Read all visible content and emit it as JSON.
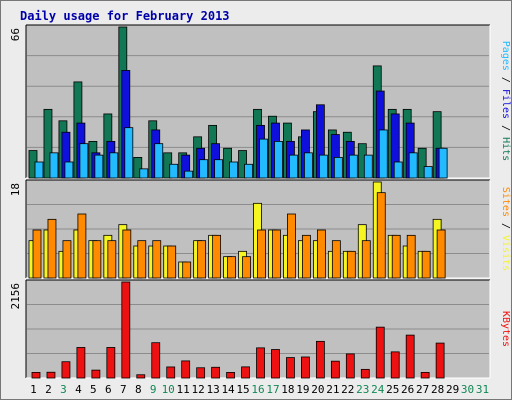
{
  "title": "Daily usage for February 2013",
  "colors": {
    "hits": "#127755",
    "files": "#1010dd",
    "pages": "#22bbff",
    "visits": "#f5f522",
    "sites": "#ff8a00",
    "kbytes": "#ee1111",
    "weekend_day": "#128855",
    "weekday": "#000000",
    "panel_bg": "#c0c0c0"
  },
  "right_labels": {
    "top": [
      {
        "text": "Pages",
        "color": "#22bbff"
      },
      {
        "text": " / ",
        "color": "#000000"
      },
      {
        "text": "Files",
        "color": "#1010dd"
      },
      {
        "text": " / ",
        "color": "#000000"
      },
      {
        "text": "Hits",
        "color": "#127755"
      }
    ],
    "middle": [
      {
        "text": "Sites",
        "color": "#ff8a00"
      },
      {
        "text": " / ",
        "color": "#000000"
      },
      {
        "text": "Visits",
        "color": "#f5f522"
      }
    ],
    "bottom": [
      {
        "text": "KBytes",
        "color": "#ee1111"
      }
    ]
  },
  "chart_data": {
    "type": "bar",
    "title": "Daily usage for February 2013",
    "days": [
      "1",
      "2",
      "3",
      "4",
      "5",
      "6",
      "7",
      "8",
      "9",
      "10",
      "11",
      "12",
      "13",
      "14",
      "15",
      "16",
      "17",
      "18",
      "19",
      "20",
      "21",
      "22",
      "23",
      "24",
      "25",
      "26",
      "27",
      "28",
      "29",
      "30",
      "31"
    ],
    "weekend_days": [
      "3",
      "9",
      "10",
      "16",
      "17",
      "23",
      "24",
      "30",
      "31"
    ],
    "panels": [
      {
        "name": "hits-files-pages",
        "ymax_label": "66",
        "ylim": [
          0,
          66
        ],
        "series": [
          {
            "name": "Hits",
            "color_key": "hits",
            "values": [
              12,
              30,
              25,
              42,
              16,
              28,
              66,
              9,
              25,
              11,
              11,
              18,
              23,
              13,
              12,
              30,
              27,
              24,
              18,
              29,
              21,
              20,
              15,
              49,
              30,
              30,
              13,
              29,
              null,
              null,
              null
            ]
          },
          {
            "name": "Files",
            "color_key": "files",
            "values": [
              null,
              null,
              20,
              24,
              11,
              16,
              47,
              null,
              21,
              null,
              10,
              13,
              15,
              null,
              null,
              23,
              24,
              16,
              21,
              32,
              19,
              16,
              null,
              38,
              28,
              24,
              null,
              13,
              null,
              null,
              null
            ]
          },
          {
            "name": "Pages",
            "color_key": "pages",
            "values": [
              7,
              11,
              7,
              15,
              10,
              11,
              22,
              4,
              15,
              6,
              3,
              8,
              8,
              7,
              6,
              17,
              16,
              10,
              11,
              10,
              9,
              10,
              10,
              21,
              7,
              11,
              5,
              13,
              null,
              null,
              null
            ]
          }
        ]
      },
      {
        "name": "visits-sites",
        "ymax_label": "18",
        "ylim": [
          0,
          18
        ],
        "series": [
          {
            "name": "Visits",
            "color_key": "visits",
            "values": [
              7,
              9,
              5,
              9,
              7,
              8,
              10,
              6,
              6,
              6,
              3,
              7,
              8,
              4,
              5,
              14,
              9,
              8,
              7,
              7,
              5,
              5,
              10,
              18,
              8,
              6,
              5,
              11,
              null,
              null,
              null
            ]
          },
          {
            "name": "Sites",
            "color_key": "sites",
            "values": [
              9,
              11,
              7,
              12,
              7,
              7,
              9,
              7,
              7,
              6,
              3,
              7,
              8,
              4,
              4,
              9,
              9,
              12,
              8,
              9,
              7,
              5,
              7,
              16,
              8,
              8,
              5,
              9,
              null,
              null,
              null
            ]
          }
        ]
      },
      {
        "name": "kbytes",
        "ymax_label": "2156",
        "ylim": [
          0,
          2156
        ],
        "series": [
          {
            "name": "KBytes",
            "color_key": "kbytes",
            "values": [
              126,
              130,
              366,
              686,
              177,
              686,
              2156,
              73,
              793,
              248,
              384,
              230,
              241,
              125,
              250,
              677,
              640,
              459,
              472,
              823,
              378,
              541,
              194,
              1142,
              587,
              963,
              126,
              784,
              null,
              null,
              null
            ]
          }
        ]
      }
    ]
  }
}
